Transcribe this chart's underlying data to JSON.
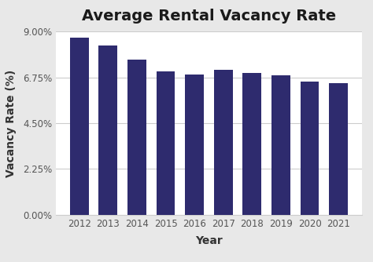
{
  "title": "Average Rental Vacancy Rate",
  "xlabel": "Year",
  "ylabel": "Vacancy Rate (%)",
  "years": [
    2012,
    2013,
    2014,
    2015,
    2016,
    2017,
    2018,
    2019,
    2020,
    2021
  ],
  "values": [
    8.7,
    8.3,
    7.6,
    7.05,
    6.9,
    7.1,
    6.95,
    6.85,
    6.55,
    6.45
  ],
  "bar_color": "#2e2b6e",
  "plot_bg_color": "#ffffff",
  "fig_bg_color": "#e8e8e8",
  "grid_color": "#cccccc",
  "ylim": [
    0,
    9.0
  ],
  "yticks": [
    0.0,
    2.25,
    4.5,
    6.75,
    9.0
  ],
  "ytick_labels": [
    "0.00%",
    "2.25%",
    "4.50%",
    "6.75%",
    "9.00%"
  ],
  "title_fontsize": 14,
  "axis_label_fontsize": 10,
  "tick_fontsize": 8.5,
  "bar_width": 0.65
}
